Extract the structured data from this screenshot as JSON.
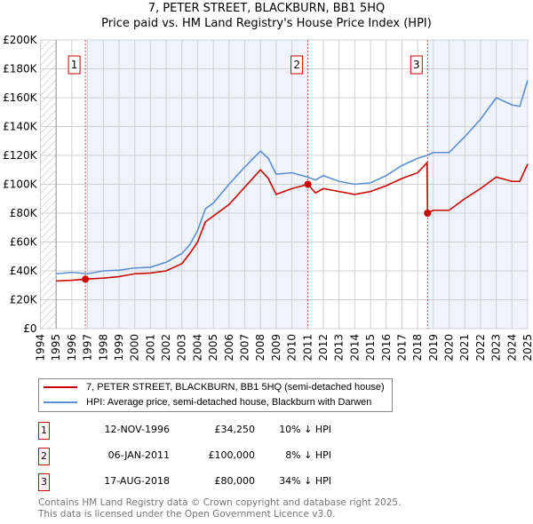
{
  "title": "7, PETER STREET, BLACKBURN, BB1 5HQ",
  "subtitle": "Price paid vs. HM Land Registry's House Price Index (HPI)",
  "chart_data": {
    "type": "line",
    "title": "7, PETER STREET, BLACKBURN, BB1 5HQ",
    "subtitle": "Price paid vs. HM Land Registry's House Price Index (HPI)",
    "xlim": [
      1994,
      2025
    ],
    "ylim": [
      0,
      200000
    ],
    "xticks": [
      "1994",
      "1995",
      "1996",
      "1997",
      "1998",
      "1999",
      "2000",
      "2001",
      "2002",
      "2003",
      "2004",
      "2005",
      "2006",
      "2007",
      "2008",
      "2009",
      "2010",
      "2011",
      "2012",
      "2013",
      "2014",
      "2015",
      "2016",
      "2017",
      "2018",
      "2019",
      "2020",
      "2021",
      "2022",
      "2023",
      "2024",
      "2025"
    ],
    "yticks": [
      {
        "v": 0,
        "l": "£0"
      },
      {
        "v": 20000,
        "l": "£20K"
      },
      {
        "v": 40000,
        "l": "£40K"
      },
      {
        "v": 60000,
        "l": "£60K"
      },
      {
        "v": 80000,
        "l": "£80K"
      },
      {
        "v": 100000,
        "l": "£100K"
      },
      {
        "v": 120000,
        "l": "£120K"
      },
      {
        "v": 140000,
        "l": "£140K"
      },
      {
        "v": 160000,
        "l": "£160K"
      },
      {
        "v": 180000,
        "l": "£180K"
      },
      {
        "v": 200000,
        "l": "£200K"
      }
    ],
    "grid": true,
    "legend_position": "below",
    "series": [
      {
        "name": "7, PETER STREET, BLACKBURN, BB1 5HQ (semi-detached house)",
        "color": "#cc0000",
        "x": [
          1995,
          1996,
          1996.86,
          1998,
          1999,
          2000,
          2001,
          2002,
          2003,
          2003.5,
          2004,
          2004.5,
          2005,
          2006,
          2007,
          2008,
          2008.5,
          2009,
          2010,
          2011.02,
          2011.5,
          2012,
          2013,
          2014,
          2015,
          2016,
          2017,
          2018,
          2018.6,
          2018.63,
          2019,
          2020,
          2021,
          2022,
          2023,
          2024,
          2024.5,
          2025
        ],
        "y": [
          33000,
          33500,
          34250,
          35000,
          36000,
          38000,
          38500,
          40000,
          45000,
          52000,
          60000,
          74000,
          78000,
          86000,
          98000,
          110000,
          104000,
          93000,
          97000,
          100000,
          94000,
          97000,
          95000,
          93000,
          95000,
          99000,
          104000,
          108000,
          115000,
          80000,
          82000,
          82000,
          90000,
          97000,
          105000,
          102000,
          102000,
          114000
        ]
      },
      {
        "name": "HPI: Average price, semi-detached house, Blackburn with Darwen",
        "color": "#5b8fd4",
        "x": [
          1995,
          1996,
          1997,
          1998,
          1999,
          2000,
          2001,
          2002,
          2003,
          2003.5,
          2004,
          2004.5,
          2005,
          2006,
          2007,
          2008,
          2008.5,
          2009,
          2010,
          2011,
          2011.5,
          2012,
          2013,
          2014,
          2015,
          2016,
          2017,
          2018,
          2018.6,
          2019,
          2020,
          2021,
          2022,
          2023,
          2024,
          2024.5,
          2025
        ],
        "y": [
          38000,
          39000,
          38000,
          40000,
          40500,
          42000,
          42500,
          46000,
          52000,
          58000,
          68000,
          83000,
          87000,
          100000,
          112000,
          123000,
          118000,
          107000,
          108000,
          105000,
          103000,
          106000,
          102000,
          100000,
          101000,
          106000,
          113000,
          118000,
          120000,
          122000,
          122000,
          133000,
          145000,
          160000,
          155000,
          154000,
          172000
        ]
      }
    ],
    "sales": [
      {
        "n": "1",
        "x": 1996.86,
        "y": 34250
      },
      {
        "n": "2",
        "x": 2011.02,
        "y": 100000
      },
      {
        "n": "3",
        "x": 2018.63,
        "y": 80000
      }
    ]
  },
  "legend": {
    "price_label": "7, PETER STREET, BLACKBURN, BB1 5HQ (semi-detached house)",
    "hpi_label": "HPI: Average price, semi-detached house, Blackburn with Darwen"
  },
  "transactions": [
    {
      "n": "1",
      "date": "12-NOV-1996",
      "price": "£34,250",
      "diff": "10% ↓ HPI"
    },
    {
      "n": "2",
      "date": "06-JAN-2011",
      "price": "£100,000",
      "diff": "8% ↓ HPI"
    },
    {
      "n": "3",
      "date": "17-AUG-2018",
      "price": "£80,000",
      "diff": "34% ↓ HPI"
    }
  ],
  "footer": [
    "Contains HM Land Registry data © Crown copyright and database right 2025.",
    "This data is licensed under the Open Government Licence v3.0."
  ]
}
